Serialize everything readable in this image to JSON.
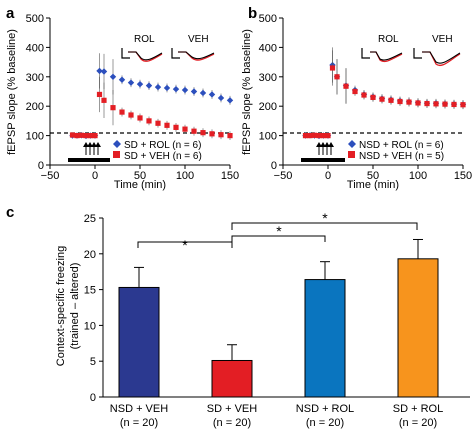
{
  "chart_data": [
    {
      "panel": "a",
      "type": "scatter",
      "xlabel": "Time (min)",
      "ylabel": "fEPSP slope (% baseline)",
      "xlim": [
        -50,
        150
      ],
      "ylim": [
        0,
        500
      ],
      "xticks": [
        "−50",
        "0",
        "50",
        "100",
        "150"
      ],
      "yticks": [
        "0",
        "100",
        "200",
        "300",
        "400",
        "500"
      ],
      "series": [
        {
          "name": "SD + ROL",
          "n": "(n = 6)",
          "color": "#2c4fbd",
          "marker": "diamond",
          "x": [
            -25,
            -20,
            -15,
            -10,
            -5,
            0,
            5,
            10,
            20,
            30,
            40,
            50,
            60,
            70,
            80,
            90,
            100,
            110,
            120,
            130,
            140,
            150
          ],
          "y": [
            100,
            100,
            101,
            99,
            100,
            100,
            320,
            318,
            300,
            290,
            280,
            275,
            270,
            265,
            262,
            258,
            255,
            250,
            245,
            240,
            228,
            220
          ]
        },
        {
          "name": "SD + VEH",
          "n": "(n = 6)",
          "color": "#e31e24",
          "marker": "square",
          "x": [
            -25,
            -20,
            -15,
            -10,
            -5,
            0,
            5,
            10,
            20,
            30,
            40,
            50,
            60,
            70,
            80,
            90,
            100,
            110,
            120,
            130,
            140,
            150
          ],
          "y": [
            102,
            100,
            101,
            100,
            100,
            100,
            240,
            220,
            195,
            180,
            170,
            160,
            150,
            142,
            135,
            128,
            122,
            115,
            110,
            106,
            103,
            100
          ]
        }
      ],
      "baseline": 100,
      "insets": [
        "ROL",
        "VEH"
      ]
    },
    {
      "panel": "b",
      "type": "scatter",
      "xlabel": "Time (min)",
      "ylabel": "fEPSP slope (% baseline)",
      "xlim": [
        -50,
        150
      ],
      "ylim": [
        0,
        500
      ],
      "xticks": [
        "−50",
        "0",
        "50",
        "100",
        "150"
      ],
      "yticks": [
        "0",
        "100",
        "200",
        "300",
        "400",
        "500"
      ],
      "series": [
        {
          "name": "NSD + ROL",
          "n": "(n = 6)",
          "color": "#2c4fbd",
          "marker": "diamond",
          "x": [
            -25,
            -20,
            -15,
            -10,
            -5,
            0,
            5,
            10,
            20,
            30,
            40,
            50,
            60,
            70,
            80,
            90,
            100,
            110,
            120,
            130,
            140,
            150
          ],
          "y": [
            100,
            101,
            100,
            99,
            100,
            100,
            340,
            300,
            270,
            255,
            240,
            232,
            226,
            222,
            218,
            215,
            212,
            210,
            210,
            208,
            207,
            206
          ]
        },
        {
          "name": "NSD + VEH",
          "n": "(n = 5)",
          "color": "#e31e24",
          "marker": "square",
          "x": [
            -25,
            -20,
            -15,
            -10,
            -5,
            0,
            5,
            10,
            20,
            30,
            40,
            50,
            60,
            70,
            80,
            90,
            100,
            110,
            120,
            130,
            140,
            150
          ],
          "y": [
            100,
            100,
            101,
            100,
            100,
            100,
            330,
            300,
            268,
            250,
            238,
            230,
            224,
            220,
            216,
            214,
            211,
            209,
            208,
            207,
            206,
            205
          ]
        }
      ],
      "baseline": 100,
      "insets": [
        "ROL",
        "VEH"
      ]
    },
    {
      "panel": "c",
      "type": "bar",
      "ylabel": "Context-specific freezing (trained – altered)",
      "ylabel_line1": "Context-specific freezing",
      "ylabel_line2": "(trained – altered)",
      "ylim": [
        0,
        25
      ],
      "yticks": [
        "0",
        "5",
        "10",
        "15",
        "20",
        "25"
      ],
      "categories": [
        "NSD + VEH",
        "SD + VEH",
        "NSD + ROL",
        "SD + ROL"
      ],
      "n_labels": [
        "(n = 20)",
        "(n = 20)",
        "(n = 20)",
        "(n = 20)"
      ],
      "values": [
        15.3,
        5.1,
        16.4,
        19.3
      ],
      "errors": [
        2.8,
        2.2,
        2.5,
        2.7
      ],
      "colors": [
        "#2b3990",
        "#e31e24",
        "#0a75bf",
        "#f7941d"
      ],
      "significance": [
        "*",
        "*",
        "*"
      ]
    }
  ]
}
